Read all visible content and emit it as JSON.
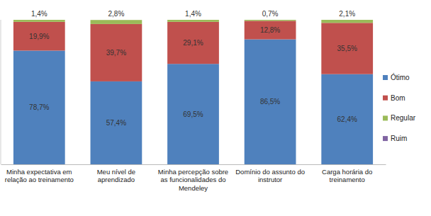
{
  "chart_data": {
    "type": "bar",
    "stacked": true,
    "data_labels": true,
    "tick_labels": "x",
    "legend": "right",
    "ylim": [
      0,
      100
    ],
    "categories": [
      "Minha expectativa em relação ao treinamento",
      "Meu nível de aprendizado",
      "Minha percepção sobre as funcionalidades do Mendeley",
      "Domínio do assunto do instrutor",
      "Carga horária do treinamento"
    ],
    "series": [
      {
        "name": "Ótimo",
        "color": "#4f81bd",
        "values": [
          78.7,
          57.4,
          69.5,
          86.5,
          62.4
        ],
        "value_labels": [
          "78,7%",
          "57,4%",
          "69,5%",
          "86,5%",
          "62,4%"
        ]
      },
      {
        "name": "Bom",
        "color": "#c0504d",
        "values": [
          19.9,
          39.7,
          29.1,
          12.8,
          35.5
        ],
        "value_labels": [
          "19,9%",
          "39,7%",
          "29,1%",
          "12,8%",
          "35,5%"
        ]
      },
      {
        "name": "Regular",
        "color": "#9bbb59",
        "values": [
          1.4,
          2.8,
          1.4,
          0.7,
          2.1
        ],
        "value_labels": [
          "1,4%",
          "2,8%",
          "1,4%",
          "0,7%",
          "2,1%"
        ]
      },
      {
        "name": "Ruim",
        "color": "#8064a2",
        "values": [
          0,
          0,
          0,
          0,
          0
        ]
      }
    ]
  }
}
